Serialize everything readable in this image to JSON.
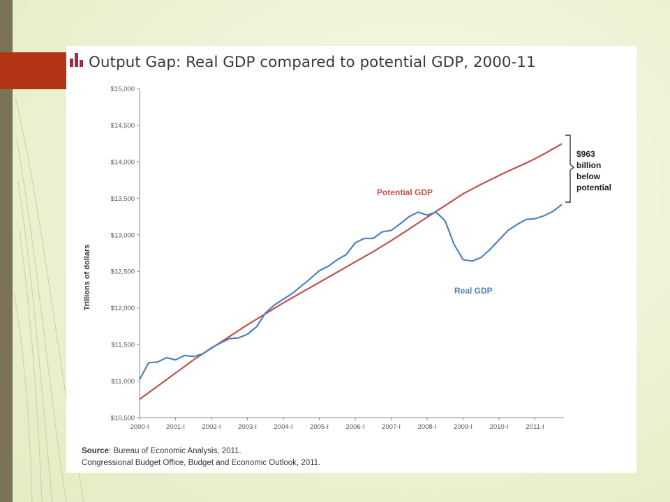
{
  "chart_data": {
    "type": "line",
    "title": "Output Gap: Real GDP compared to potential GDP, 2000-11",
    "ylabel": "Trillions of dollars",
    "ylim": [
      10500,
      15000
    ],
    "y_ticks": [
      "$10,500",
      "$11,000",
      "$11,500",
      "$12,000",
      "$12,500",
      "$13,000",
      "$13,500",
      "$14,000",
      "$14,500",
      "$15,000"
    ],
    "y_tick_values": [
      10500,
      11000,
      11500,
      12000,
      12500,
      13000,
      13500,
      14000,
      14500,
      15000
    ],
    "x_ticks": [
      "2000-I",
      "2001-I",
      "2002-I",
      "2003-I",
      "2004-I",
      "2005-I",
      "2006-I",
      "2007-I",
      "2008-I",
      "2009-I",
      "2010-I",
      "2011-I"
    ],
    "series": [
      {
        "name": "Potential GDP",
        "color": "#c0504d",
        "x": [
          "2000-I",
          "2000-II",
          "2000-III",
          "2000-IV",
          "2001-I",
          "2001-II",
          "2001-III",
          "2001-IV",
          "2002-I",
          "2002-II",
          "2002-III",
          "2002-IV",
          "2003-I",
          "2003-II",
          "2003-III",
          "2003-IV",
          "2004-I",
          "2004-II",
          "2004-III",
          "2004-IV",
          "2005-I",
          "2005-II",
          "2005-III",
          "2005-IV",
          "2006-I",
          "2006-II",
          "2006-III",
          "2006-IV",
          "2007-I",
          "2007-II",
          "2007-III",
          "2007-IV",
          "2008-I",
          "2008-II",
          "2008-III",
          "2008-IV",
          "2009-I",
          "2009-II",
          "2009-III",
          "2009-IV",
          "2010-I",
          "2010-II",
          "2010-III",
          "2010-IV",
          "2011-I",
          "2011-II",
          "2011-III",
          "2011-IV"
        ],
        "values": [
          10750,
          10840,
          10930,
          11020,
          11110,
          11200,
          11290,
          11370,
          11450,
          11530,
          11610,
          11690,
          11770,
          11845,
          11920,
          11995,
          12070,
          12140,
          12210,
          12280,
          12350,
          12420,
          12490,
          12560,
          12630,
          12700,
          12770,
          12845,
          12920,
          13000,
          13080,
          13160,
          13240,
          13320,
          13400,
          13480,
          13560,
          13625,
          13690,
          13750,
          13810,
          13870,
          13925,
          13980,
          14040,
          14105,
          14175,
          14245
        ]
      },
      {
        "name": "Real GDP",
        "color": "#4f81bd",
        "x": [
          "2000-I",
          "2000-II",
          "2000-III",
          "2000-IV",
          "2001-I",
          "2001-II",
          "2001-III",
          "2001-IV",
          "2002-I",
          "2002-II",
          "2002-III",
          "2002-IV",
          "2003-I",
          "2003-II",
          "2003-III",
          "2003-IV",
          "2004-I",
          "2004-II",
          "2004-III",
          "2004-IV",
          "2005-I",
          "2005-II",
          "2005-III",
          "2005-IV",
          "2006-I",
          "2006-II",
          "2006-III",
          "2006-IV",
          "2007-I",
          "2007-II",
          "2007-III",
          "2007-IV",
          "2008-I",
          "2008-II",
          "2008-III",
          "2008-IV",
          "2009-I",
          "2009-II",
          "2009-III",
          "2009-IV",
          "2010-I",
          "2010-II",
          "2010-III",
          "2010-IV",
          "2011-I",
          "2011-II",
          "2011-III",
          "2011-IV"
        ],
        "values": [
          11020,
          11250,
          11260,
          11320,
          11290,
          11350,
          11335,
          11370,
          11455,
          11520,
          11580,
          11590,
          11640,
          11740,
          11930,
          12040,
          12120,
          12200,
          12300,
          12400,
          12510,
          12570,
          12660,
          12730,
          12890,
          12950,
          12950,
          13040,
          13060,
          13150,
          13250,
          13310,
          13270,
          13310,
          13190,
          12870,
          12660,
          12640,
          12690,
          12800,
          12930,
          13060,
          13140,
          13210,
          13220,
          13260,
          13320,
          13415
        ]
      }
    ],
    "annotations": {
      "potential_label": "Potential GDP",
      "real_label": "Real GDP",
      "gap_lines": [
        "$963",
        "billion",
        "below",
        "potential"
      ]
    },
    "grid": false,
    "legend": "inline labels"
  },
  "source": {
    "bold": "Source",
    "line1": ": Bureau of Economic Analysis, 2011.",
    "line2": "Congressional Budget Office, Budget and Economic Outlook, 2011."
  },
  "colors": {
    "accent_red": "#b23616",
    "stripe": "#7b7357",
    "potential": "#c0504d",
    "real": "#4f81bd",
    "logo": "#9b2d4a"
  }
}
